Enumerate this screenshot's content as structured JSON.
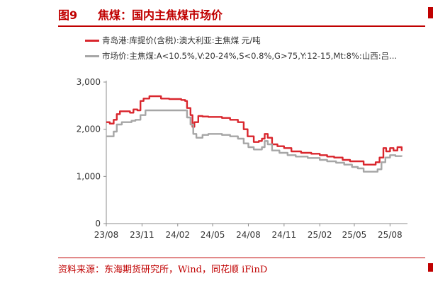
{
  "figure": {
    "label": "图9",
    "title": "焦煤：国内主焦煤市场价",
    "source": "资料来源：东海期货研究所，Wind，同花顺 iFinD"
  },
  "colors": {
    "accent": "#c00000",
    "series_red": "#d9262d",
    "series_gray": "#a6a6a6"
  },
  "chart_data": {
    "type": "line",
    "x_type": "date",
    "yticks": [
      "0",
      "1,000",
      "2,000",
      "3,000"
    ],
    "ytick_values": [
      0,
      1000,
      2000,
      3000
    ],
    "ylim": [
      0,
      3000
    ],
    "xticks": [
      "23/08",
      "23/11",
      "24/02",
      "24/05",
      "24/08",
      "24/11",
      "25/02",
      "25/05",
      "25/08"
    ],
    "xtick_dates": [
      "2023-08-01",
      "2023-11-01",
      "2024-02-01",
      "2024-05-01",
      "2024-08-01",
      "2024-11-01",
      "2025-02-01",
      "2025-05-01",
      "2025-08-01"
    ],
    "xlim": [
      "2023-08-01",
      "2025-09-15"
    ],
    "grid": false,
    "legend_position": "top",
    "series": [
      {
        "name": "青岛港:库提价(含税):澳大利亚:主焦煤 元/吨",
        "color": "#d9262d",
        "points": [
          [
            "2023-08-01",
            2150
          ],
          [
            "2023-08-10",
            2120
          ],
          [
            "2023-08-20",
            2200
          ],
          [
            "2023-08-28",
            2320
          ],
          [
            "2023-09-05",
            2380
          ],
          [
            "2023-09-20",
            2380
          ],
          [
            "2023-10-01",
            2350
          ],
          [
            "2023-10-10",
            2420
          ],
          [
            "2023-10-20",
            2400
          ],
          [
            "2023-10-28",
            2600
          ],
          [
            "2023-11-05",
            2650
          ],
          [
            "2023-11-20",
            2700
          ],
          [
            "2023-12-10",
            2700
          ],
          [
            "2023-12-20",
            2650
          ],
          [
            "2024-01-10",
            2640
          ],
          [
            "2024-01-25",
            2640
          ],
          [
            "2024-02-10",
            2620
          ],
          [
            "2024-02-20",
            2600
          ],
          [
            "2024-02-25",
            2450
          ],
          [
            "2024-03-05",
            2300
          ],
          [
            "2024-03-10",
            2050
          ],
          [
            "2024-03-15",
            2150
          ],
          [
            "2024-03-25",
            2280
          ],
          [
            "2024-04-05",
            2270
          ],
          [
            "2024-04-20",
            2260
          ],
          [
            "2024-05-10",
            2260
          ],
          [
            "2024-05-25",
            2240
          ],
          [
            "2024-06-15",
            2200
          ],
          [
            "2024-07-05",
            2150
          ],
          [
            "2024-07-20",
            2000
          ],
          [
            "2024-07-30",
            1850
          ],
          [
            "2024-08-15",
            1730
          ],
          [
            "2024-08-28",
            1750
          ],
          [
            "2024-09-05",
            1800
          ],
          [
            "2024-09-12",
            1900
          ],
          [
            "2024-09-20",
            1820
          ],
          [
            "2024-10-01",
            1680
          ],
          [
            "2024-10-15",
            1640
          ],
          [
            "2024-11-01",
            1600
          ],
          [
            "2024-11-20",
            1530
          ],
          [
            "2024-12-15",
            1500
          ],
          [
            "2025-01-10",
            1480
          ],
          [
            "2025-02-01",
            1450
          ],
          [
            "2025-02-20",
            1420
          ],
          [
            "2025-03-10",
            1400
          ],
          [
            "2025-04-01",
            1350
          ],
          [
            "2025-04-20",
            1320
          ],
          [
            "2025-05-10",
            1320
          ],
          [
            "2025-05-25",
            1250
          ],
          [
            "2025-06-10",
            1250
          ],
          [
            "2025-06-25",
            1300
          ],
          [
            "2025-07-05",
            1400
          ],
          [
            "2025-07-15",
            1600
          ],
          [
            "2025-07-22",
            1530
          ],
          [
            "2025-08-01",
            1600
          ],
          [
            "2025-08-10",
            1550
          ],
          [
            "2025-08-20",
            1620
          ],
          [
            "2025-08-31",
            1540
          ]
        ]
      },
      {
        "name": "市场价:主焦煤:A<10.5%,V:20-24%,S<0.8%,G>75,Y:12-15,Mt:8%:山西:吕...",
        "color": "#a6a6a6",
        "points": [
          [
            "2023-08-01",
            1850
          ],
          [
            "2023-08-10",
            1850
          ],
          [
            "2023-08-20",
            1950
          ],
          [
            "2023-08-28",
            2100
          ],
          [
            "2023-09-10",
            2150
          ],
          [
            "2023-09-25",
            2150
          ],
          [
            "2023-10-05",
            2180
          ],
          [
            "2023-10-15",
            2200
          ],
          [
            "2023-10-28",
            2300
          ],
          [
            "2023-11-10",
            2400
          ],
          [
            "2023-12-01",
            2400
          ],
          [
            "2024-01-01",
            2400
          ],
          [
            "2024-01-25",
            2400
          ],
          [
            "2024-02-15",
            2400
          ],
          [
            "2024-02-25",
            2250
          ],
          [
            "2024-03-05",
            2100
          ],
          [
            "2024-03-12",
            1900
          ],
          [
            "2024-03-20",
            1820
          ],
          [
            "2024-04-05",
            1880
          ],
          [
            "2024-04-20",
            1900
          ],
          [
            "2024-05-10",
            1900
          ],
          [
            "2024-05-25",
            1880
          ],
          [
            "2024-06-15",
            1850
          ],
          [
            "2024-07-05",
            1800
          ],
          [
            "2024-07-20",
            1700
          ],
          [
            "2024-08-01",
            1620
          ],
          [
            "2024-08-15",
            1570
          ],
          [
            "2024-08-28",
            1570
          ],
          [
            "2024-09-05",
            1620
          ],
          [
            "2024-09-12",
            1750
          ],
          [
            "2024-09-20",
            1680
          ],
          [
            "2024-10-01",
            1550
          ],
          [
            "2024-10-20",
            1500
          ],
          [
            "2024-11-10",
            1450
          ],
          [
            "2024-12-01",
            1420
          ],
          [
            "2025-01-01",
            1390
          ],
          [
            "2025-02-01",
            1350
          ],
          [
            "2025-02-20",
            1320
          ],
          [
            "2025-03-15",
            1290
          ],
          [
            "2025-04-05",
            1250
          ],
          [
            "2025-04-25",
            1200
          ],
          [
            "2025-05-10",
            1170
          ],
          [
            "2025-05-25",
            1100
          ],
          [
            "2025-06-15",
            1100
          ],
          [
            "2025-06-30",
            1150
          ],
          [
            "2025-07-10",
            1300
          ],
          [
            "2025-07-20",
            1400
          ],
          [
            "2025-08-01",
            1450
          ],
          [
            "2025-08-15",
            1430
          ],
          [
            "2025-08-31",
            1420
          ]
        ]
      }
    ]
  }
}
